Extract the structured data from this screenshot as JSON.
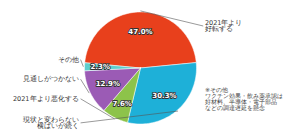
{
  "chart_data": {
    "type": "pie",
    "categories": [
      "2021年より\n好転する",
      "現状と変わらない\n横ばいが続く",
      "2021年より悪化する",
      "見通しがつかない",
      "その他"
    ],
    "values": [
      47.0,
      30.3,
      7.6,
      12.9,
      2.3
    ],
    "value_labels": [
      "47.0%",
      "30.3%",
      "7.6%",
      "12.9%",
      "2.3%"
    ],
    "colors": [
      "#e8401c",
      "#1eb0d8",
      "#8dc34a",
      "#9b5bb5",
      "#5ecece"
    ],
    "data_labels": true,
    "annotations": [
      "※その他\nワクチン効果・飲み薬承認は\n好材料、半導体・電子部品\nなどの調達遅延を懸念"
    ]
  }
}
